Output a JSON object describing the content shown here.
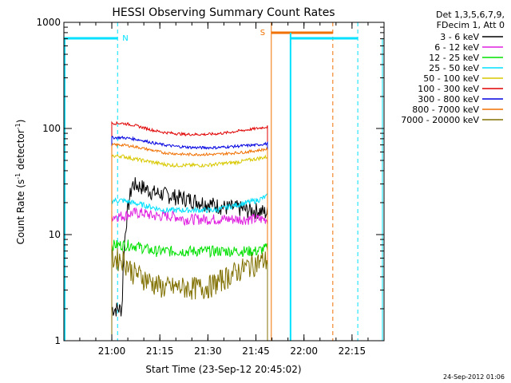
{
  "chart_data": {
    "type": "line",
    "title": "HESSI Observing Summary Count Rates",
    "xlabel": "Start Time (23-Sep-12 20:45:02)",
    "ylabel_main": "Count Rate (s",
    "ylabel_sup1": "-1",
    "ylabel_mid": " detector",
    "ylabel_sup2": "-1",
    "ylabel_end": ")",
    "yscale": "log",
    "ylim": [
      1,
      1000
    ],
    "xlim": [
      "20:45:02",
      "22:25:00"
    ],
    "x_ticks": [
      "21:00",
      "21:15",
      "21:30",
      "21:45",
      "22:00",
      "22:15"
    ],
    "y_ticks": [
      "1",
      "10",
      "100",
      "1000"
    ],
    "legend_header": [
      "Det 1,3,5,6,7,9,",
      "FDecim 1, Att 0"
    ],
    "timestamp": "24-Sep-2012 01:06",
    "series": [
      {
        "name": "3 - 6 keV",
        "color": "#000000",
        "start": 21.0,
        "end": 21.81,
        "values": [
          2,
          2,
          30,
          28,
          25,
          24,
          23,
          22,
          21,
          20,
          19,
          18,
          18,
          17,
          17,
          16
        ]
      },
      {
        "name": "6 - 12 keV",
        "color": "#e020e0",
        "start": 21.0,
        "end": 21.81,
        "values": [
          15,
          15,
          16,
          16,
          15,
          15,
          15,
          14,
          14,
          14,
          14,
          14,
          14,
          14,
          14,
          14
        ]
      },
      {
        "name": "12 - 25 keV",
        "color": "#00e000",
        "start": 21.0,
        "end": 21.81,
        "values": [
          8,
          8,
          8,
          7.5,
          7,
          7,
          7,
          7,
          7,
          7,
          7,
          7,
          7,
          7,
          7,
          7.5
        ]
      },
      {
        "name": "25 - 50 keV",
        "color": "#00e0ff",
        "start": 21.0,
        "end": 21.81,
        "values": [
          21,
          21,
          20,
          19,
          18,
          17,
          17,
          17,
          17,
          17,
          17,
          18,
          19,
          20,
          21,
          23
        ]
      },
      {
        "name": "50 - 100 keV",
        "color": "#d8c800",
        "start": 21.0,
        "end": 21.81,
        "values": [
          55,
          55,
          52,
          50,
          48,
          46,
          45,
          45,
          45,
          45,
          46,
          47,
          48,
          50,
          52,
          54
        ]
      },
      {
        "name": "100 - 300 keV",
        "color": "#e00000",
        "start": 21.0,
        "end": 21.81,
        "values": [
          112,
          112,
          108,
          102,
          96,
          92,
          90,
          88,
          88,
          88,
          89,
          91,
          94,
          97,
          100,
          104
        ]
      },
      {
        "name": "300 - 800 keV",
        "color": "#0000e0",
        "start": 21.0,
        "end": 21.81,
        "values": [
          82,
          82,
          80,
          77,
          73,
          70,
          68,
          67,
          66,
          66,
          66,
          67,
          68,
          69,
          70,
          72
        ]
      },
      {
        "name": "800 - 7000 keV",
        "color": "#f07000",
        "start": 21.0,
        "end": 21.81,
        "values": [
          70,
          70,
          68,
          65,
          62,
          59,
          58,
          57,
          57,
          57,
          57,
          58,
          59,
          60,
          62,
          64
        ]
      },
      {
        "name": "7000 - 20000 keV",
        "color": "#807000",
        "start": 21.0,
        "end": 21.81,
        "values": [
          6,
          6,
          4.5,
          4,
          3.5,
          3.2,
          3.2,
          3.2,
          3.2,
          3.2,
          3.5,
          4,
          4.5,
          5,
          5.5,
          5.8
        ]
      }
    ],
    "annotations": [
      {
        "label": "N",
        "color": "#00e0ff"
      },
      {
        "label": "S",
        "color": "#f07000"
      }
    ]
  }
}
